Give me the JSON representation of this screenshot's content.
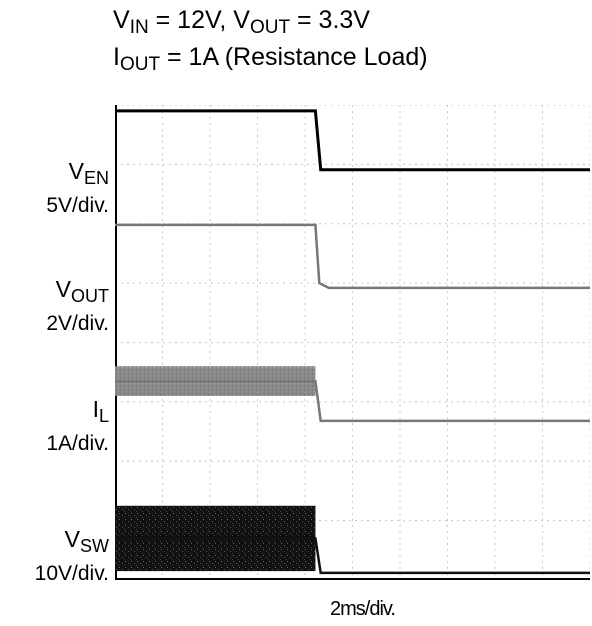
{
  "title": {
    "line1": {
      "v1_main": "V",
      "v1_sub": "IN",
      "v1_rest": " = 12V, ",
      "v2_main": "V",
      "v2_sub": "OUT",
      "v2_rest": " = 3.3V"
    },
    "line2": {
      "main": "I",
      "sub": "OUT",
      "rest": " = 1A (Resistance  Load)"
    }
  },
  "channels": [
    {
      "name_main": "V",
      "name_sub": "EN",
      "scale": "5V/div."
    },
    {
      "name_main": "V",
      "name_sub": "OUT",
      "scale": "2V/div."
    },
    {
      "name_main": "I",
      "name_sub": "L",
      "scale": "1A/div."
    },
    {
      "name_main": "V",
      "name_sub": "SW",
      "scale": "10V/div."
    }
  ],
  "x_scale_label": "2ms/div.",
  "chart_data": {
    "type": "line",
    "divisions": {
      "x": 10,
      "y": 8
    },
    "x_unit": "div",
    "y_unit": "div",
    "xlim": [
      0,
      10
    ],
    "ylim": [
      0,
      8
    ],
    "grid": true,
    "series": [
      {
        "color": "#000000",
        "points": [
          [
            0,
            7.9
          ],
          [
            4.22,
            7.9
          ],
          [
            4.33,
            6.91
          ],
          [
            10,
            6.91
          ]
        ]
      },
      {
        "color": "#777777",
        "points": [
          [
            0,
            5.98
          ],
          [
            4.22,
            5.98
          ],
          [
            4.3,
            5.0
          ],
          [
            4.5,
            4.92
          ],
          [
            10,
            4.92
          ]
        ]
      },
      {
        "color": "#777777",
        "band": [
          3.1,
          3.6
        ],
        "points": [
          [
            0,
            3.35
          ],
          [
            4.22,
            3.35
          ],
          [
            4.33,
            2.68
          ],
          [
            10,
            2.68
          ]
        ]
      },
      {
        "color": "#111111",
        "band": [
          0.15,
          1.25
        ],
        "points": [
          [
            0,
            0.7
          ],
          [
            4.22,
            0.7
          ],
          [
            4.33,
            0.12
          ],
          [
            10,
            0.12
          ]
        ]
      }
    ]
  }
}
